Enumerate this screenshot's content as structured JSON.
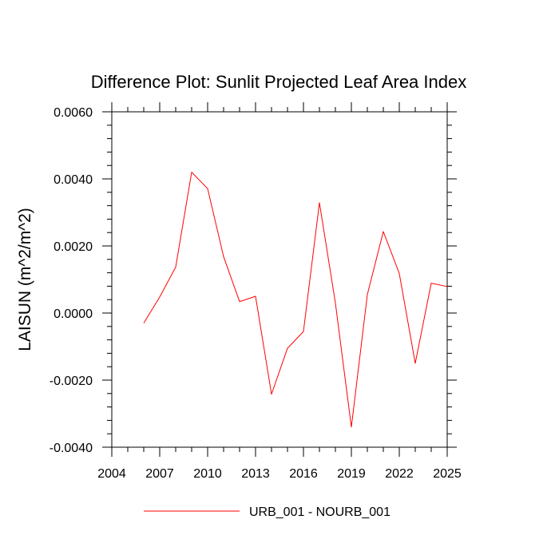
{
  "chart_data": {
    "type": "line",
    "title": "Difference Plot: Sunlit Projected Leaf Area Index",
    "ylabel": "LAISUN  (m^2/m^2)",
    "xlabel": "",
    "xlim": [
      2004,
      2025
    ],
    "ylim": [
      -0.004,
      0.006
    ],
    "x_ticks": [
      2004,
      2007,
      2010,
      2013,
      2016,
      2019,
      2022,
      2025
    ],
    "x_tick_labels": [
      "2004",
      "2007",
      "2010",
      "2013",
      "2016",
      "2019",
      "2022",
      "2025"
    ],
    "y_ticks": [
      -0.004,
      -0.002,
      0.0,
      0.002,
      0.004,
      0.006
    ],
    "y_tick_labels": [
      "-0.0040",
      "-0.0020",
      "0.0000",
      "0.0020",
      "0.0040",
      "0.0060"
    ],
    "grid": false,
    "legend_position": "bottom-center",
    "series": [
      {
        "name": "URB_001 - NOURB_001",
        "color": "#ff0000",
        "x": [
          2006,
          2007,
          2008,
          2009,
          2010,
          2011,
          2012,
          2013,
          2014,
          2015,
          2016,
          2017,
          2018,
          2019,
          2020,
          2021,
          2022,
          2023,
          2024,
          2025
        ],
        "y": [
          -0.0003,
          0.00048,
          0.00137,
          0.0042,
          0.00371,
          0.00168,
          0.00034,
          0.0005,
          -0.00242,
          -0.00105,
          -0.00055,
          0.00329,
          0.0003,
          -0.0034,
          0.00055,
          0.00243,
          0.00118,
          -0.0015,
          0.00089,
          0.00079
        ]
      }
    ]
  }
}
